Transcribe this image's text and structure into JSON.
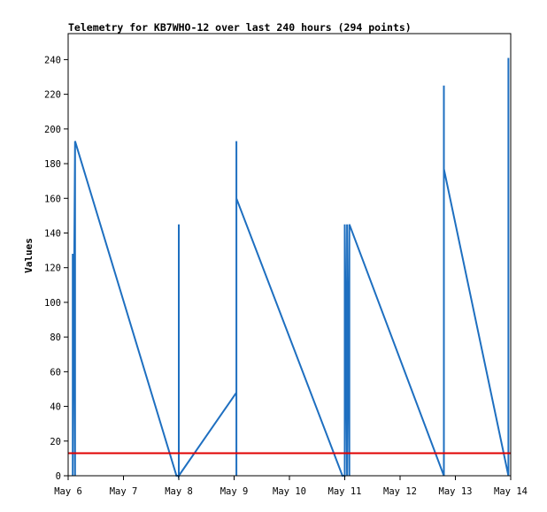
{
  "chart_data": {
    "type": "line",
    "title": "Telemetry for KB7WHO-12 over last 240 hours (294 points)",
    "xlabel": "",
    "ylabel": "Values",
    "ylim": [
      0,
      255
    ],
    "xlim": [
      "May 6 00:00",
      "May 14 00:00"
    ],
    "yticks": [
      0,
      20,
      40,
      60,
      80,
      100,
      120,
      140,
      160,
      180,
      200,
      220,
      240
    ],
    "xticks": [
      "May 6",
      "May 7",
      "May 8",
      "May 9",
      "May 10",
      "May 11",
      "May 12",
      "May 13",
      "May 14"
    ],
    "grid": false,
    "legend": "none",
    "series": [
      {
        "color": "#1e6fc0",
        "x": [
          "May 6 02:00",
          "May 6 02:00",
          "May 6 02:00",
          "May 6 02:00",
          "May 6 02:00",
          "May 6 03:00",
          "May 6 03:00",
          "May 6 03:00",
          "May 7 23:00",
          "May 8 00:00",
          "May 8 00:00",
          "May 8 00:00",
          "May 9 01:00",
          "May 9 01:00",
          "May 9 01:00",
          "May 9 01:00",
          "May 9 01:00",
          "May 9 01:00",
          "May 9 01:00",
          "May 10 23:00",
          "May 11 00:00",
          "May 11 00:00",
          "May 11 00:00",
          "May 11 00:00",
          "May 11 00:00",
          "May 11 00:00",
          "May 11 01:00",
          "May 11 01:00",
          "May 11 01:00",
          "May 11 01:00",
          "May 11 01:00",
          "May 11 01:00",
          "May 11 01:00",
          "May 11 01:00",
          "May 11 01:00",
          "May 11 01:00",
          "May 11 02:00",
          "May 11 02:00",
          "May 11 02:00",
          "May 11 02:00",
          "May 11 02:00",
          "May 11 02:00",
          "May 11 02:00",
          "May 11 02:00",
          "May 11 02:00",
          "May 11 02:00",
          "May 12 19:00",
          "May 12 19:00",
          "May 12 19:00",
          "May 12 19:00",
          "May 12 19:00",
          "May 12 19:00",
          "May 12 19:00",
          "May 12 19:00",
          "May 13 23:00",
          "May 13 23:00",
          "May 13 23:00",
          "May 13 23:00"
        ],
        "y": [
          0,
          128,
          0,
          128,
          0,
          193,
          0,
          193,
          0,
          0,
          145,
          0,
          48,
          0,
          193,
          0,
          193,
          0,
          160,
          0,
          0,
          145,
          0,
          113,
          0,
          145,
          0,
          30,
          0,
          67,
          0,
          87,
          0,
          49,
          0,
          145,
          0,
          145,
          0,
          145,
          0,
          145,
          0,
          145,
          0,
          145,
          0,
          225,
          0,
          177,
          0,
          225,
          0,
          177,
          0,
          241,
          0,
          241
        ]
      },
      {
        "color": "#e00000",
        "x": [
          "May 6 00:00",
          "May 14 00:00"
        ],
        "y": [
          13,
          13
        ]
      }
    ]
  }
}
